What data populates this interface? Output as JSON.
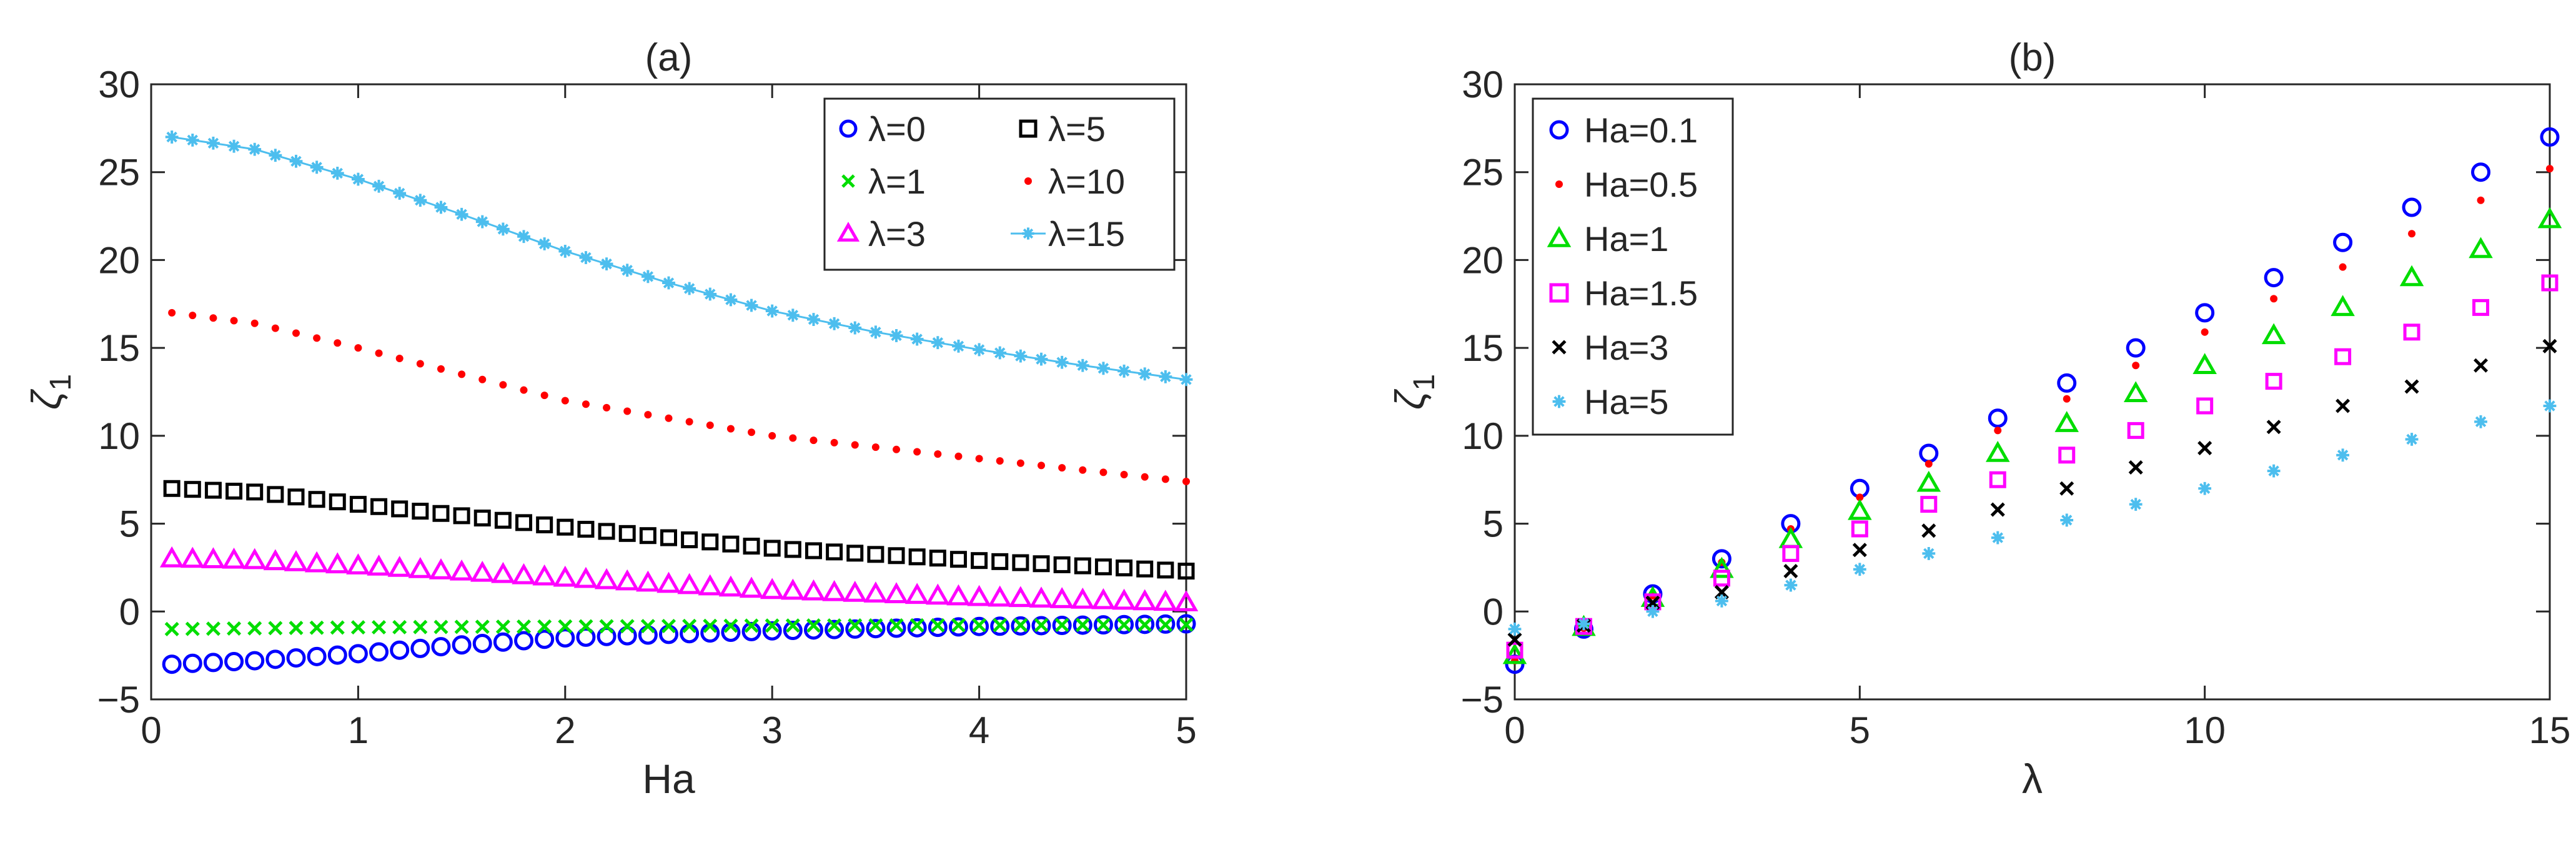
{
  "figure": {
    "panels": [
      "a",
      "b"
    ]
  },
  "chart_data": [
    {
      "id": "a",
      "type": "scatter",
      "title": "(a)",
      "xlabel": "Ha",
      "ylabel_main": "ζ",
      "ylabel_sub": "1",
      "xlim": [
        0,
        5
      ],
      "ylim": [
        -5,
        30
      ],
      "xticks": [
        0,
        1,
        2,
        3,
        4,
        5
      ],
      "yticks": [
        -5,
        0,
        5,
        10,
        15,
        20,
        25,
        30
      ],
      "xtick_labels": [
        "0",
        "1",
        "2",
        "3",
        "4",
        "5"
      ],
      "ytick_labels": [
        "−5",
        "0",
        "5",
        "10",
        "15",
        "20",
        "25",
        "30"
      ],
      "grid": false,
      "legend_position": "top-right",
      "legend_columns": 2,
      "x_samples": {
        "start": 0.1,
        "stop": 5.0,
        "step": 0.1
      },
      "series": [
        {
          "name": "λ=0",
          "marker": "circle",
          "color": "#0000ff",
          "line": false,
          "anchors_x": [
            0.1,
            0.5,
            1,
            1.5,
            2,
            3,
            4,
            5
          ],
          "anchors_y": [
            -3.0,
            -2.8,
            -2.4,
            -1.9,
            -1.5,
            -1.1,
            -0.85,
            -0.7
          ]
        },
        {
          "name": "λ=1",
          "marker": "x",
          "color": "#00dd00",
          "line": false,
          "anchors_x": [
            0.1,
            1,
            2,
            3,
            4,
            5
          ],
          "anchors_y": [
            -1.0,
            -0.9,
            -0.85,
            -0.8,
            -0.78,
            -0.75
          ]
        },
        {
          "name": "λ=3",
          "marker": "triangle",
          "color": "#ff00ff",
          "line": false,
          "anchors_x": [
            0.1,
            0.5,
            1,
            2,
            3,
            4,
            5
          ],
          "anchors_y": [
            3.0,
            2.9,
            2.6,
            1.9,
            1.2,
            0.8,
            0.5
          ]
        },
        {
          "name": "λ=5",
          "marker": "square",
          "color": "#000000",
          "line": false,
          "anchors_x": [
            0.1,
            0.5,
            1,
            2,
            3,
            4,
            5
          ],
          "anchors_y": [
            7.0,
            6.8,
            6.1,
            4.8,
            3.6,
            2.9,
            2.3
          ]
        },
        {
          "name": "λ=10",
          "marker": "dot",
          "color": "#ff0000",
          "line": false,
          "anchors_x": [
            0.1,
            0.5,
            1,
            2,
            3,
            4,
            5
          ],
          "anchors_y": [
            17.0,
            16.4,
            15.0,
            12.0,
            10.0,
            8.7,
            7.4
          ]
        },
        {
          "name": "λ=15",
          "marker": "star",
          "color": "#4dbeee",
          "line": true,
          "anchors_x": [
            0.1,
            0.5,
            1,
            1.5,
            2,
            2.5,
            3,
            3.5,
            4,
            4.5,
            5
          ],
          "anchors_y": [
            27.0,
            26.3,
            24.6,
            22.6,
            20.5,
            18.7,
            17.1,
            15.9,
            14.9,
            14.0,
            13.2
          ]
        }
      ]
    },
    {
      "id": "b",
      "type": "scatter",
      "title": "(b)",
      "xlabel": "λ",
      "ylabel_main": "ζ",
      "ylabel_sub": "1",
      "xlim": [
        0,
        15
      ],
      "ylim": [
        -5,
        30
      ],
      "xticks": [
        0,
        5,
        10,
        15
      ],
      "yticks": [
        -5,
        0,
        5,
        10,
        15,
        20,
        25,
        30
      ],
      "xtick_labels": [
        "0",
        "5",
        "10",
        "15"
      ],
      "ytick_labels": [
        "−5",
        "0",
        "5",
        "10",
        "15",
        "20",
        "25",
        "30"
      ],
      "grid": false,
      "legend_position": "top-left",
      "legend_columns": 1,
      "x": [
        0,
        1,
        2,
        3,
        4,
        5,
        6,
        7,
        8,
        9,
        10,
        11,
        12,
        13,
        14,
        15
      ],
      "series": [
        {
          "name": "Ha=0.1",
          "marker": "circle",
          "color": "#0000ff",
          "values": [
            -3.0,
            -1.0,
            1.0,
            3.0,
            5.0,
            7.0,
            9.0,
            11.0,
            13.0,
            15.0,
            17.0,
            19.0,
            21.0,
            23.0,
            25.0,
            27.0
          ]
        },
        {
          "name": "Ha=0.5",
          "marker": "dot",
          "color": "#ff0000",
          "values": [
            -2.8,
            -0.95,
            0.9,
            2.8,
            4.7,
            6.5,
            8.4,
            10.3,
            12.1,
            14.0,
            15.9,
            17.8,
            19.6,
            21.5,
            23.4,
            25.2
          ]
        },
        {
          "name": "Ha=1",
          "marker": "triangle",
          "color": "#00dd00",
          "values": [
            -2.5,
            -0.9,
            0.75,
            2.4,
            4.1,
            5.7,
            7.3,
            9.0,
            10.7,
            12.4,
            14.0,
            15.7,
            17.3,
            19.0,
            20.6,
            22.3
          ]
        },
        {
          "name": "Ha=1.5",
          "marker": "square",
          "color": "#ff00ff",
          "values": [
            -2.2,
            -0.85,
            0.55,
            1.9,
            3.3,
            4.7,
            6.1,
            7.5,
            8.9,
            10.3,
            11.7,
            13.1,
            14.5,
            15.9,
            17.3,
            18.7
          ]
        },
        {
          "name": "Ha=3",
          "marker": "x",
          "color": "#000000",
          "values": [
            -1.6,
            -0.8,
            0.5,
            1.1,
            2.3,
            3.5,
            4.6,
            5.8,
            7.0,
            8.2,
            9.3,
            10.5,
            11.7,
            12.8,
            14.0,
            15.1
          ]
        },
        {
          "name": "Ha=5",
          "marker": "star",
          "color": "#4dbeee",
          "values": [
            -1.0,
            -0.7,
            0.0,
            0.6,
            1.5,
            2.4,
            3.3,
            4.2,
            5.2,
            6.1,
            7.0,
            8.0,
            8.9,
            9.8,
            10.8,
            11.7
          ]
        }
      ]
    }
  ]
}
